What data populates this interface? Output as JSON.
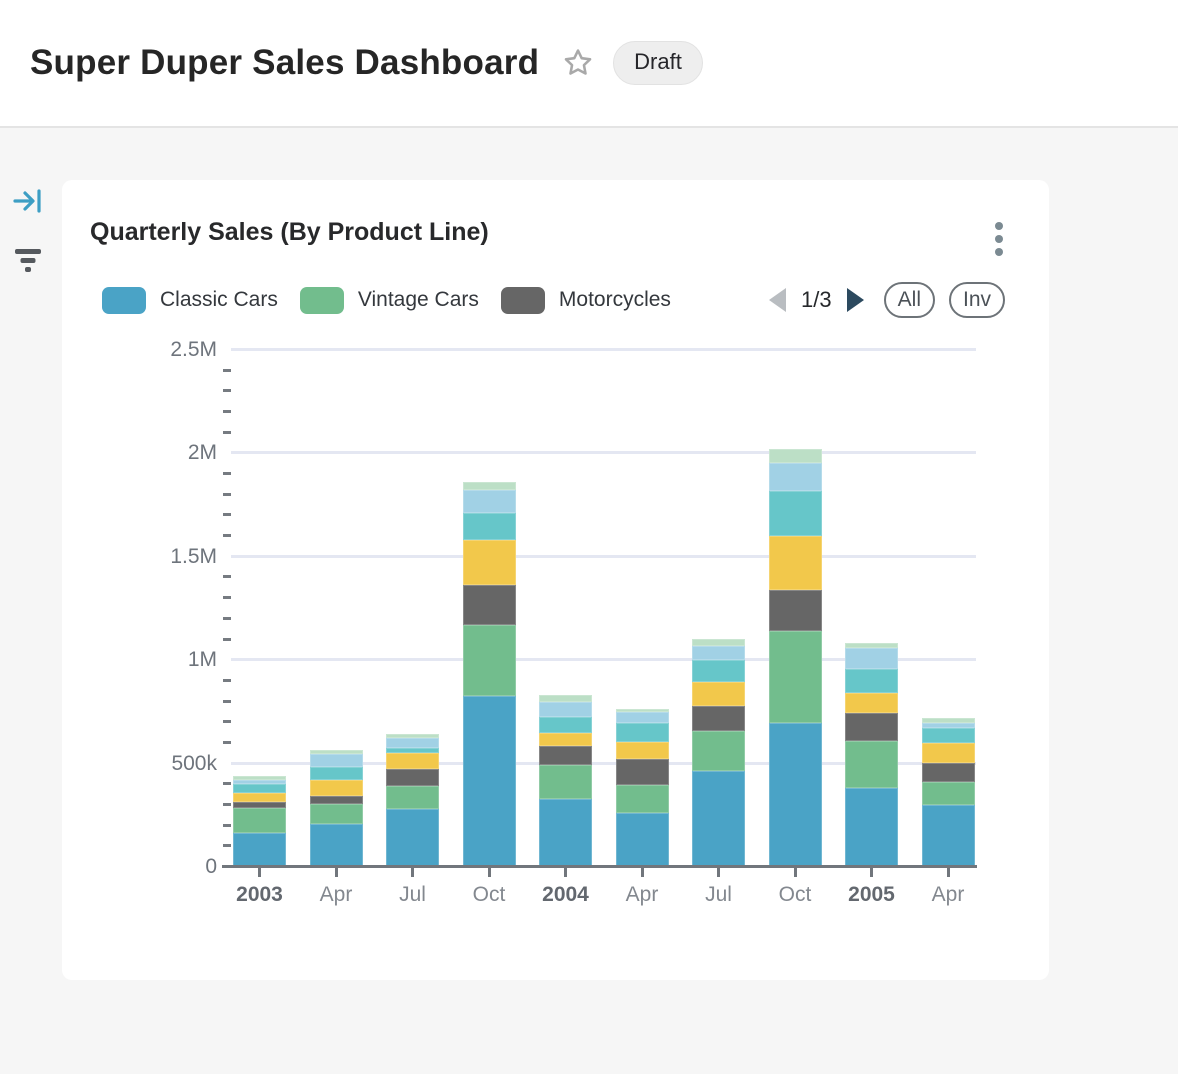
{
  "header": {
    "title": "Super Duper Sales Dashboard",
    "status_badge": "Draft"
  },
  "card": {
    "pagination": {
      "page_label": "1/3"
    },
    "buttons": {
      "all": "All",
      "inv": "Inv"
    }
  },
  "chart_data": {
    "type": "bar",
    "stacked": true,
    "title": "Quarterly Sales (By Product Line)",
    "categories": [
      "2003",
      "Apr",
      "Jul",
      "Oct",
      "2004",
      "Apr",
      "Jul",
      "Oct",
      "2005",
      "Apr"
    ],
    "categories_bold": [
      true,
      false,
      false,
      false,
      true,
      false,
      false,
      false,
      true,
      false
    ],
    "ylim": [
      0,
      2500000
    ],
    "y_ticks": [
      {
        "label": "0",
        "value": 0
      },
      {
        "label": "500k",
        "value": 500000
      },
      {
        "label": "1M",
        "value": 1000000
      },
      {
        "label": "1.5M",
        "value": 1500000
      },
      {
        "label": "2M",
        "value": 2000000
      },
      {
        "label": "2.5M",
        "value": 2500000
      }
    ],
    "minor_tick_interval": 100000,
    "grid": "horizontal-major",
    "legend_position": "top",
    "legend_note": "legend paginated, page 1 of 3 visible; 4 additional series shown in bars are unlabeled on this page",
    "series": [
      {
        "name": "Classic Cars",
        "color_name": "blue",
        "color": "#4aa3c6",
        "in_visible_legend": true,
        "values": [
          165000,
          210000,
          280000,
          825000,
          330000,
          260000,
          465000,
          695000,
          380000,
          300000
        ]
      },
      {
        "name": "Vintage Cars",
        "color_name": "green",
        "color": "#72bd8d",
        "in_visible_legend": true,
        "values": [
          120000,
          95000,
          110000,
          345000,
          165000,
          135000,
          195000,
          445000,
          230000,
          110000
        ]
      },
      {
        "name": "Motorcycles",
        "color_name": "dark-gray",
        "color": "#666666",
        "in_visible_legend": true,
        "values": [
          30000,
          40000,
          85000,
          195000,
          90000,
          125000,
          120000,
          200000,
          135000,
          95000
        ]
      },
      {
        "name": "",
        "color_name": "yellow",
        "color": "#f2c84b",
        "in_visible_legend": false,
        "values": [
          45000,
          75000,
          75000,
          215000,
          65000,
          85000,
          115000,
          260000,
          95000,
          95000
        ]
      },
      {
        "name": "",
        "color_name": "teal",
        "color": "#66c6c9",
        "in_visible_legend": false,
        "values": [
          40000,
          65000,
          25000,
          130000,
          75000,
          90000,
          105000,
          220000,
          120000,
          70000
        ]
      },
      {
        "name": "",
        "color_name": "light-blue",
        "color": "#a1d1e5",
        "in_visible_legend": false,
        "values": [
          20000,
          60000,
          50000,
          115000,
          75000,
          55000,
          70000,
          135000,
          100000,
          25000
        ]
      },
      {
        "name": "",
        "color_name": "light-green",
        "color": "#bcdfc6",
        "in_visible_legend": false,
        "values": [
          20000,
          20000,
          20000,
          35000,
          30000,
          15000,
          35000,
          65000,
          25000,
          25000
        ]
      }
    ]
  }
}
